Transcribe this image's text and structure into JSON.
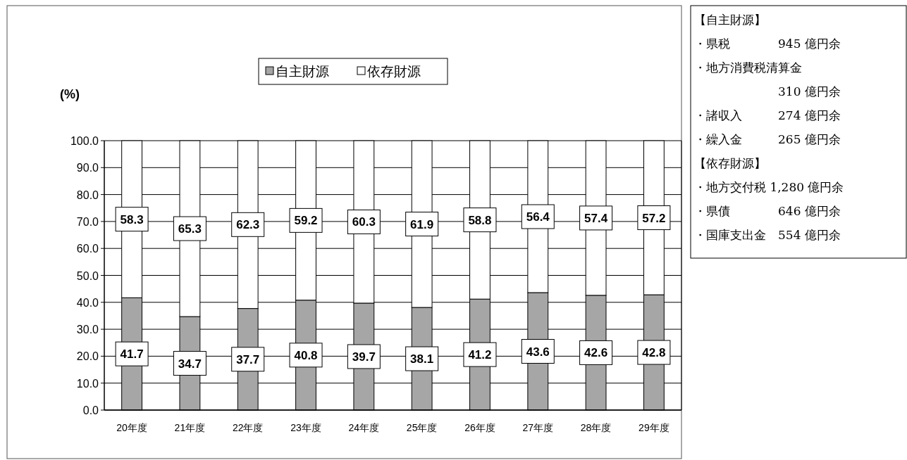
{
  "chart_data": [
    {
      "type": "bar",
      "stacked": true,
      "ylabel": "(%)",
      "categories": [
        "20年度",
        "21年度",
        "22年度",
        "23年度",
        "24年度",
        "25年度",
        "26年度",
        "27年度",
        "28年度",
        "29年度"
      ],
      "series": [
        {
          "name": "自主財源",
          "color": "#a6a6a6",
          "values": [
            41.7,
            34.7,
            37.7,
            40.8,
            39.7,
            38.1,
            41.2,
            43.6,
            42.6,
            42.8
          ]
        },
        {
          "name": "依存財源",
          "color": "#ffffff",
          "values": [
            58.3,
            65.3,
            62.3,
            59.2,
            60.3,
            61.9,
            58.8,
            56.4,
            57.4,
            57.2
          ]
        }
      ],
      "ylim": [
        0,
        100
      ],
      "yticks": [
        {
          "value": 0,
          "label": "0.0"
        },
        {
          "value": 10,
          "label": "10.0"
        },
        {
          "value": 20,
          "label": "20.0"
        },
        {
          "value": 30,
          "label": "30.0"
        },
        {
          "value": 40,
          "label": "40.0"
        },
        {
          "value": 50,
          "label": "50.0"
        },
        {
          "value": 60,
          "label": "60.0"
        },
        {
          "value": 70,
          "label": "70.0"
        },
        {
          "value": 80,
          "label": "80.0"
        },
        {
          "value": 90,
          "label": "90.0"
        },
        {
          "value": 100,
          "label": "100.0"
        }
      ],
      "grid": "y",
      "legend": "top",
      "data_labels": true
    },
    {
      "type": "other",
      "annotations": [
        "【自主財源】",
        "・県税　　　　945 億円余",
        "・地方消費税清算金",
        "　　　　　　　310 億円余",
        "・諸収入　　　274 億円余",
        "・繰入金　　　265 億円余",
        "【依存財源】",
        "・地方交付税 1,280 億円余",
        "・県債　　　　646 億円余",
        "・国庫支出金　554 億円余"
      ]
    }
  ]
}
